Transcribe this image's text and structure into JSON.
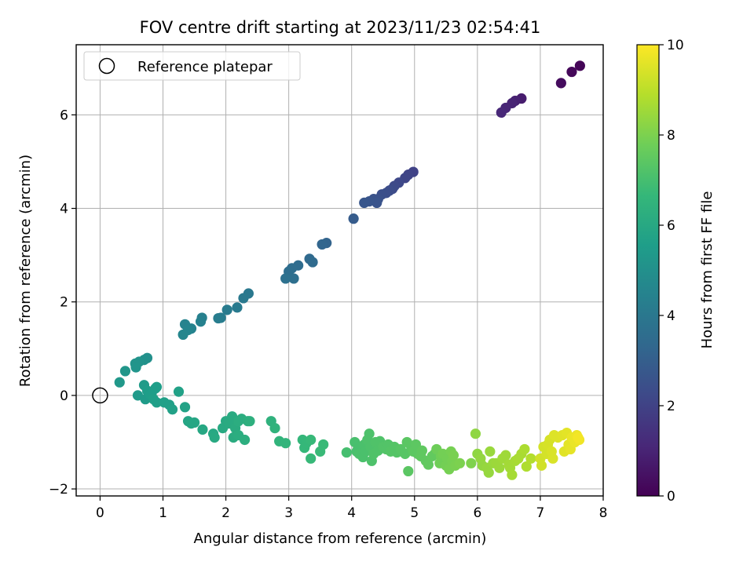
{
  "chart_data": {
    "type": "scatter",
    "title": "FOV centre drift starting at 2023/11/23 02:54:41",
    "xlabel": "Angular distance from reference (arcmin)",
    "ylabel": "Rotation from reference (arcmin)",
    "xlim": [
      -0.38,
      8.0
    ],
    "ylim": [
      -2.15,
      7.5
    ],
    "xticks": [
      "0",
      "1",
      "2",
      "3",
      "4",
      "5",
      "6",
      "7",
      "8"
    ],
    "yticks": [
      "−2",
      "0",
      "2",
      "4",
      "6"
    ],
    "grid": true,
    "legend": {
      "position": "upper-left",
      "entries": [
        "Reference platepar"
      ]
    },
    "reference_point": {
      "x": 0,
      "y": 0
    },
    "colorbar": {
      "label": "Hours from first FF file",
      "range": [
        0,
        10
      ],
      "ticks": [
        "0",
        "2",
        "4",
        "6",
        "8",
        "10"
      ],
      "colormap": "viridis",
      "stops": [
        "#440154",
        "#482878",
        "#3e4989",
        "#31688e",
        "#26828e",
        "#1f9e89",
        "#35b779",
        "#6ece58",
        "#b5de2b",
        "#fde725"
      ]
    },
    "series": [
      {
        "points": [
          [
            7.63,
            7.05,
            0.1
          ],
          [
            7.5,
            6.92,
            0.2
          ],
          [
            7.33,
            6.68,
            0.3
          ],
          [
            6.7,
            6.35,
            0.8
          ],
          [
            6.6,
            6.3,
            0.9
          ],
          [
            6.55,
            6.25,
            1.0
          ],
          [
            6.45,
            6.15,
            1.05
          ],
          [
            6.38,
            6.05,
            1.1
          ],
          [
            4.98,
            4.78,
            2.0
          ],
          [
            4.9,
            4.72,
            2.05
          ],
          [
            4.85,
            4.65,
            2.1
          ],
          [
            4.75,
            4.55,
            2.2
          ],
          [
            4.68,
            4.48,
            2.25
          ],
          [
            4.65,
            4.42,
            2.3
          ],
          [
            4.6,
            4.38,
            2.35
          ],
          [
            4.55,
            4.33,
            2.4
          ],
          [
            4.48,
            4.3,
            2.45
          ],
          [
            4.42,
            4.2,
            2.5
          ],
          [
            4.35,
            4.2,
            2.55
          ],
          [
            4.4,
            4.12,
            2.6
          ],
          [
            4.28,
            4.15,
            2.65
          ],
          [
            4.2,
            4.12,
            2.7
          ],
          [
            4.03,
            3.78,
            2.9
          ],
          [
            3.6,
            3.26,
            3.2
          ],
          [
            3.53,
            3.23,
            3.25
          ],
          [
            3.33,
            2.92,
            3.4
          ],
          [
            3.38,
            2.85,
            3.45
          ],
          [
            3.15,
            2.78,
            3.5
          ],
          [
            3.05,
            2.72,
            3.55
          ],
          [
            3.0,
            2.65,
            3.6
          ],
          [
            3.08,
            2.5,
            3.65
          ],
          [
            2.95,
            2.5,
            3.7
          ],
          [
            2.36,
            2.18,
            4.0
          ],
          [
            2.28,
            2.08,
            4.05
          ],
          [
            2.18,
            1.88,
            4.1
          ],
          [
            2.02,
            1.83,
            4.15
          ],
          [
            1.92,
            1.66,
            4.2
          ],
          [
            1.88,
            1.65,
            4.25
          ],
          [
            1.62,
            1.66,
            4.35
          ],
          [
            1.6,
            1.58,
            4.4
          ],
          [
            1.45,
            1.43,
            4.45
          ],
          [
            1.35,
            1.52,
            4.5
          ],
          [
            1.4,
            1.4,
            4.55
          ],
          [
            1.32,
            1.3,
            4.6
          ],
          [
            0.75,
            0.8,
            5.0
          ],
          [
            0.7,
            0.76,
            5.05
          ],
          [
            0.62,
            0.72,
            5.1
          ],
          [
            0.56,
            0.68,
            5.15
          ],
          [
            0.57,
            0.6,
            5.2
          ],
          [
            0.4,
            0.52,
            5.25
          ],
          [
            0.31,
            0.28,
            5.3
          ],
          [
            0.6,
            0.0,
            5.4
          ],
          [
            0.72,
            -0.08,
            5.45
          ],
          [
            0.7,
            0.22,
            5.45
          ],
          [
            0.75,
            0.1,
            5.5
          ],
          [
            0.82,
            0.05,
            5.5
          ],
          [
            0.88,
            0.15,
            5.5
          ],
          [
            0.9,
            0.18,
            5.55
          ],
          [
            0.8,
            0.02,
            5.55
          ],
          [
            0.85,
            -0.08,
            5.6
          ],
          [
            0.9,
            -0.15,
            5.6
          ],
          [
            1.02,
            -0.15,
            5.65
          ],
          [
            1.1,
            -0.2,
            5.65
          ],
          [
            1.15,
            -0.3,
            5.7
          ],
          [
            1.25,
            0.08,
            5.7
          ],
          [
            1.35,
            -0.25,
            5.75
          ],
          [
            1.4,
            -0.55,
            5.85
          ],
          [
            1.5,
            -0.58,
            5.9
          ],
          [
            1.45,
            -0.6,
            5.9
          ],
          [
            1.63,
            -0.73,
            5.95
          ],
          [
            1.8,
            -0.82,
            6.0
          ],
          [
            1.82,
            -0.9,
            6.05
          ],
          [
            1.95,
            -0.7,
            6.05
          ],
          [
            2.0,
            -0.55,
            6.05
          ],
          [
            2.05,
            -0.6,
            6.1
          ],
          [
            2.1,
            -0.45,
            6.1
          ],
          [
            2.12,
            -0.9,
            6.15
          ],
          [
            2.15,
            -0.7,
            6.15
          ],
          [
            2.2,
            -0.85,
            6.2
          ],
          [
            2.2,
            -0.55,
            6.2
          ],
          [
            2.25,
            -0.5,
            6.2
          ],
          [
            2.3,
            -0.95,
            6.25
          ],
          [
            2.35,
            -0.55,
            6.25
          ],
          [
            2.38,
            -0.55,
            6.3
          ],
          [
            2.72,
            -0.55,
            6.4
          ],
          [
            2.78,
            -0.7,
            6.45
          ],
          [
            2.85,
            -0.98,
            6.5
          ],
          [
            2.95,
            -1.02,
            6.55
          ],
          [
            3.22,
            -0.95,
            6.6
          ],
          [
            3.25,
            -1.12,
            6.65
          ],
          [
            3.28,
            -1.02,
            6.65
          ],
          [
            3.35,
            -1.35,
            6.7
          ],
          [
            3.35,
            -0.95,
            6.7
          ],
          [
            3.5,
            -1.2,
            6.75
          ],
          [
            3.55,
            -1.05,
            6.75
          ],
          [
            3.92,
            -1.22,
            7.0
          ],
          [
            4.05,
            -1.0,
            7.05
          ],
          [
            4.08,
            -1.2,
            7.05
          ],
          [
            4.1,
            -1.15,
            7.05
          ],
          [
            4.12,
            -1.25,
            7.1
          ],
          [
            4.18,
            -1.32,
            7.1
          ],
          [
            4.2,
            -1.05,
            7.1
          ],
          [
            4.22,
            -1.2,
            7.1
          ],
          [
            4.25,
            -0.95,
            7.15
          ],
          [
            4.28,
            -0.82,
            7.15
          ],
          [
            4.3,
            -1.1,
            7.15
          ],
          [
            4.32,
            -1.4,
            7.15
          ],
          [
            4.35,
            -1.25,
            7.2
          ],
          [
            4.38,
            -1.0,
            7.2
          ],
          [
            4.42,
            -1.18,
            7.2
          ],
          [
            4.45,
            -0.98,
            7.2
          ],
          [
            4.5,
            -1.1,
            7.25
          ],
          [
            4.55,
            -1.15,
            7.25
          ],
          [
            4.58,
            -1.05,
            7.25
          ],
          [
            4.62,
            -1.2,
            7.3
          ],
          [
            4.68,
            -1.1,
            7.3
          ],
          [
            4.72,
            -1.22,
            7.3
          ],
          [
            4.78,
            -1.15,
            7.35
          ],
          [
            4.85,
            -1.25,
            7.35
          ],
          [
            4.88,
            -1.0,
            7.4
          ],
          [
            4.9,
            -1.62,
            7.4
          ],
          [
            4.95,
            -1.12,
            7.4
          ],
          [
            4.98,
            -1.2,
            7.45
          ],
          [
            5.02,
            -1.05,
            7.45
          ],
          [
            5.05,
            -1.25,
            7.45
          ],
          [
            5.1,
            -1.3,
            7.5
          ],
          [
            5.12,
            -1.18,
            7.5
          ],
          [
            5.18,
            -1.4,
            7.5
          ],
          [
            5.22,
            -1.48,
            7.55
          ],
          [
            5.28,
            -1.3,
            7.55
          ],
          [
            5.32,
            -1.25,
            7.55
          ],
          [
            5.35,
            -1.15,
            7.75
          ],
          [
            5.4,
            -1.45,
            7.8
          ],
          [
            5.42,
            -1.3,
            7.8
          ],
          [
            5.45,
            -1.25,
            7.85
          ],
          [
            5.5,
            -1.5,
            7.85
          ],
          [
            5.52,
            -1.35,
            7.85
          ],
          [
            5.55,
            -1.58,
            7.9
          ],
          [
            5.58,
            -1.2,
            7.9
          ],
          [
            5.6,
            -1.4,
            7.9
          ],
          [
            5.62,
            -1.28,
            7.95
          ],
          [
            5.65,
            -1.5,
            7.95
          ],
          [
            5.72,
            -1.45,
            8.0
          ],
          [
            5.9,
            -1.45,
            8.05
          ],
          [
            5.97,
            -0.82,
            8.3
          ],
          [
            6.0,
            -1.25,
            8.3
          ],
          [
            6.05,
            -1.35,
            8.35
          ],
          [
            6.08,
            -1.5,
            8.35
          ],
          [
            6.15,
            -1.55,
            8.4
          ],
          [
            6.18,
            -1.65,
            8.4
          ],
          [
            6.2,
            -1.2,
            8.45
          ],
          [
            6.25,
            -1.45,
            8.45
          ],
          [
            6.3,
            -1.45,
            8.5
          ],
          [
            6.35,
            -1.55,
            8.5
          ],
          [
            6.4,
            -1.35,
            8.55
          ],
          [
            6.45,
            -1.28,
            8.55
          ],
          [
            6.5,
            -1.48,
            8.6
          ],
          [
            6.52,
            -1.55,
            8.6
          ],
          [
            6.55,
            -1.7,
            8.65
          ],
          [
            6.6,
            -1.4,
            8.65
          ],
          [
            6.65,
            -1.35,
            8.7
          ],
          [
            6.7,
            -1.25,
            8.7
          ],
          [
            6.75,
            -1.15,
            8.75
          ],
          [
            6.78,
            -1.52,
            8.8
          ],
          [
            6.85,
            -1.35,
            8.85
          ],
          [
            7.0,
            -1.35,
            9.3
          ],
          [
            7.02,
            -1.5,
            9.3
          ],
          [
            7.05,
            -1.1,
            9.35
          ],
          [
            7.1,
            -1.25,
            9.35
          ],
          [
            7.12,
            -1.05,
            9.4
          ],
          [
            7.15,
            -0.95,
            9.4
          ],
          [
            7.18,
            -1.2,
            9.45
          ],
          [
            7.2,
            -1.35,
            9.45
          ],
          [
            7.22,
            -0.85,
            9.5
          ],
          [
            7.28,
            -0.9,
            9.5
          ],
          [
            7.35,
            -0.85,
            9.55
          ],
          [
            7.38,
            -1.2,
            9.55
          ],
          [
            7.42,
            -0.8,
            9.6
          ],
          [
            7.45,
            -1.05,
            9.6
          ],
          [
            7.48,
            -1.15,
            9.65
          ],
          [
            7.5,
            -0.9,
            9.7
          ],
          [
            7.55,
            -1.0,
            9.7
          ],
          [
            7.58,
            -0.85,
            9.75
          ],
          [
            7.62,
            -0.95,
            9.8
          ],
          [
            7.6,
            -0.9,
            9.85
          ]
        ]
      }
    ]
  }
}
